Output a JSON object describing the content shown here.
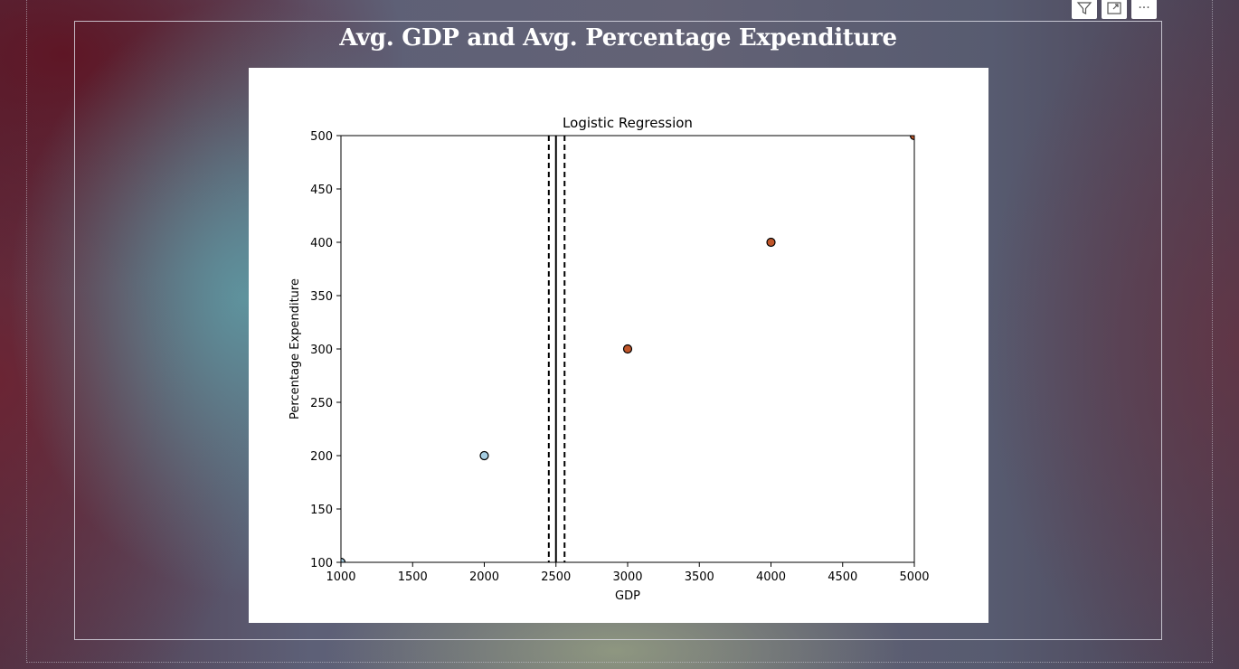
{
  "visual": {
    "title": "Avg. GDP and Avg. Percentage Expenditure"
  },
  "toolbar": {
    "icons": [
      "filter-icon",
      "focus-mode-icon",
      "more-options-icon"
    ],
    "more_label": "···"
  },
  "chart_data": {
    "type": "scatter",
    "title": "Logistic Regression",
    "xlabel": "GDP",
    "ylabel": "Percentage Expenditure",
    "xlim": [
      1000,
      5000
    ],
    "ylim": [
      100,
      500
    ],
    "x_ticks": [
      1000,
      1500,
      2000,
      2500,
      3000,
      3500,
      4000,
      4500,
      5000
    ],
    "y_ticks": [
      100,
      150,
      200,
      250,
      300,
      350,
      400,
      450,
      500
    ],
    "grid": false,
    "points": [
      {
        "x": 1000,
        "y": 100,
        "class": 0
      },
      {
        "x": 2000,
        "y": 200,
        "class": 0
      },
      {
        "x": 3000,
        "y": 300,
        "class": 1
      },
      {
        "x": 4000,
        "y": 400,
        "class": 1
      },
      {
        "x": 5000,
        "y": 500,
        "class": 1
      }
    ],
    "class_colors": {
      "0": "#a6cee3",
      "1": "#c0562a"
    },
    "decision_boundary": {
      "x": 2500,
      "style": "solid"
    },
    "margins": [
      {
        "x": 2450,
        "style": "dashed"
      },
      {
        "x": 2560,
        "style": "dashed"
      }
    ]
  }
}
